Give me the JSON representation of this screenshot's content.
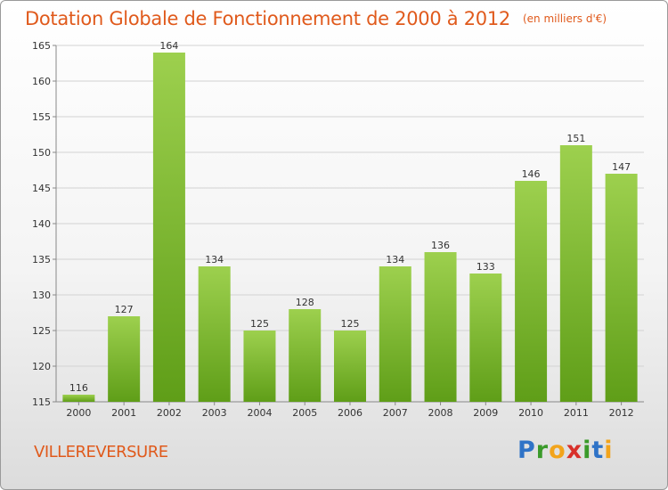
{
  "title": "Dotation Globale de Fonctionnement de 2000 à 2012",
  "subtitle": "(en milliers d'€)",
  "city": "VILLEREVERSURE",
  "logo": {
    "p": "P",
    "r": "r",
    "o": "o",
    "x": "x",
    "i": "i",
    "t": "t",
    "i2": "i"
  },
  "colors": {
    "title": "#e05a1c",
    "bar_light": "#9dd04e",
    "bar_dark": "#5f9e18",
    "grid": "#d2d2d2"
  },
  "chart_data": {
    "type": "bar",
    "title": "Dotation Globale de Fonctionnement de 2000 à 2012",
    "subtitle": "(en milliers d'€)",
    "categories": [
      "2000",
      "2001",
      "2002",
      "2003",
      "2004",
      "2005",
      "2006",
      "2007",
      "2008",
      "2009",
      "2010",
      "2011",
      "2012"
    ],
    "values": [
      116,
      127,
      164,
      134,
      125,
      128,
      125,
      134,
      136,
      133,
      146,
      151,
      147
    ],
    "ylim": [
      115,
      165
    ],
    "yticks": [
      115,
      120,
      125,
      130,
      135,
      140,
      145,
      150,
      155,
      160,
      165
    ],
    "grid": true,
    "xlabel": "",
    "ylabel": ""
  }
}
